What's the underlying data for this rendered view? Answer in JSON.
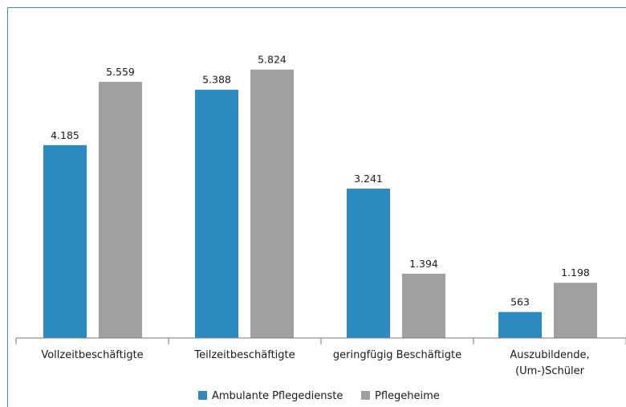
{
  "chart_data": {
    "type": "bar",
    "categories": [
      [
        "Vollzeitbeschäftigte"
      ],
      [
        "Teilzeitbeschäftigte"
      ],
      [
        "geringfügig Beschäftigte"
      ],
      [
        "Auszubildende,",
        "(Um-)Schüler"
      ]
    ],
    "series": [
      {
        "name": "Ambulante Pflegedienste",
        "color": "#2b8bc0",
        "values": [
          4185,
          5388,
          3241,
          563
        ],
        "labels": [
          "4.185",
          "5.388",
          "3.241",
          "563"
        ]
      },
      {
        "name": "Pflegeheime",
        "color": "#a0a0a0",
        "values": [
          5559,
          5824,
          1394,
          1198
        ],
        "labels": [
          "5.559",
          "5.824",
          "1.394",
          "1.198"
        ]
      }
    ],
    "ylim": [
      0,
      6000
    ],
    "grid": false,
    "legend_position": "bottom"
  }
}
